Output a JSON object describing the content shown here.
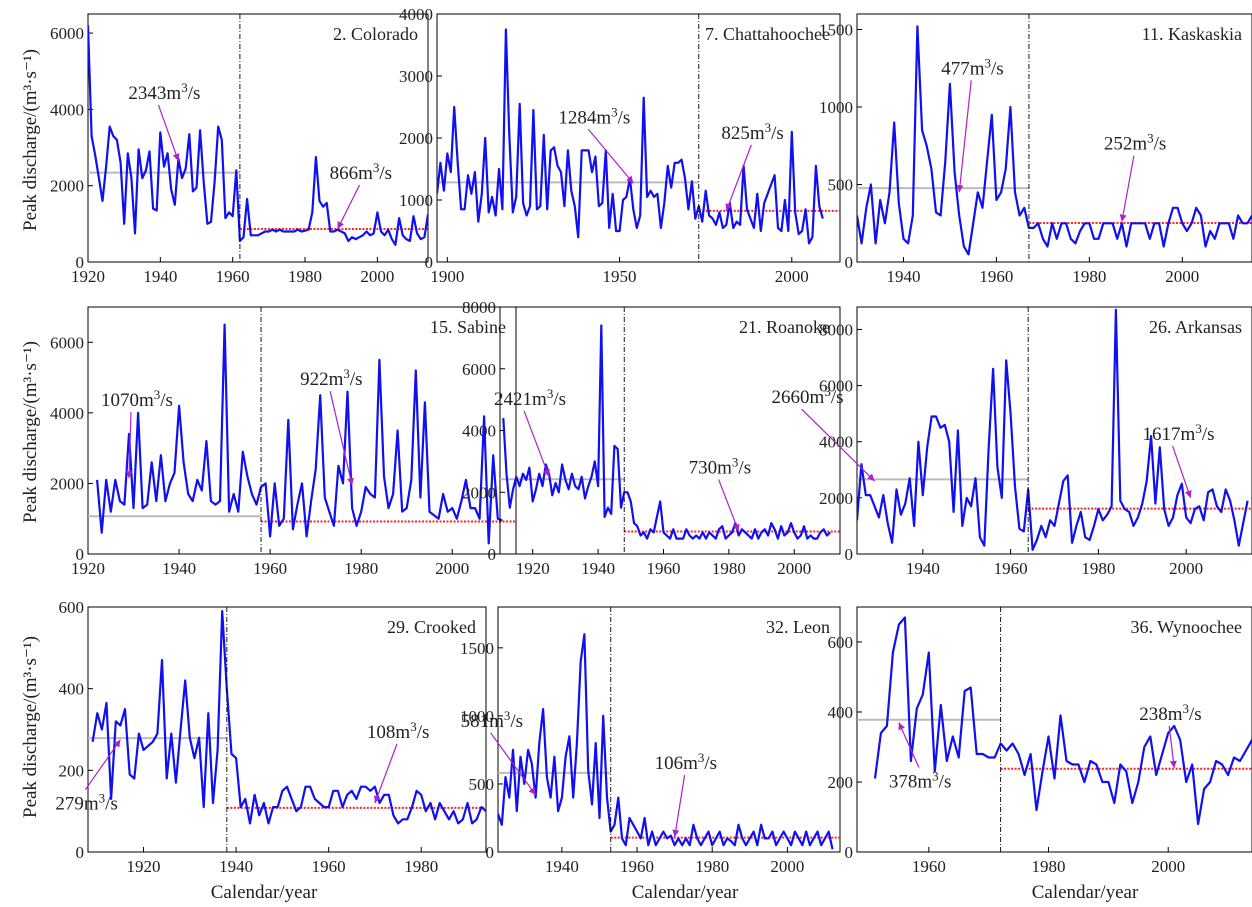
{
  "figure": {
    "ylabel": "Peak discharge/(m³·s⁻¹)",
    "xlabel": "Calendar/year"
  },
  "colors": {
    "series": "#1010f0",
    "mean_after": "#ff2222",
    "mean_before": "#bbbbbb",
    "annotation": "#b020c8",
    "changepoint": "#000000"
  },
  "chart_data": [
    {
      "type": "line",
      "title": "2. Colorado",
      "xlim": [
        1920,
        2014
      ],
      "ylim": [
        0,
        6500
      ],
      "xticks": [
        1920,
        1940,
        1960,
        1980,
        2000
      ],
      "yticks": [
        0,
        2000,
        4000,
        6000
      ],
      "changepoint": 1962,
      "mean_before": 2343,
      "mean_after": 866,
      "annotations": [
        {
          "text": "2343m³/s",
          "x": 1945,
          "y": 2650
        },
        {
          "text": "866m³/s",
          "x": 1989,
          "y": 866
        }
      ],
      "x_start": 1920,
      "values": [
        6200,
        3300,
        2800,
        2200,
        1600,
        2500,
        3550,
        3300,
        3200,
        2600,
        1000,
        2850,
        2200,
        750,
        2950,
        2200,
        2400,
        2900,
        1400,
        1350,
        3400,
        2500,
        2850,
        1900,
        1500,
        2700,
        2200,
        2450,
        3350,
        1850,
        1950,
        3450,
        2100,
        1000,
        1050,
        2100,
        3550,
        3200,
        1150,
        1300,
        1200,
        2400,
        550,
        650,
        1650,
        700,
        700,
        700,
        750,
        800,
        800,
        850,
        800,
        850,
        800,
        800,
        800,
        800,
        850,
        800,
        820,
        850,
        1300,
        2750,
        1600,
        1450,
        1550,
        800,
        800,
        850,
        800,
        750,
        550,
        650,
        600,
        650,
        700,
        800,
        700,
        750,
        1300,
        800,
        700,
        850,
        600,
        450,
        1150,
        700,
        600,
        550,
        1200,
        750,
        600,
        650,
        1250
      ]
    },
    {
      "type": "line",
      "title": "7. Chattahoochee",
      "xlim": [
        1897,
        2014
      ],
      "ylim": [
        0,
        4000
      ],
      "xticks": [
        1900,
        1950,
        2000
      ],
      "yticks": [
        0,
        1000,
        2000,
        3000,
        4000
      ],
      "changepoint": 1973,
      "mean_before": 1284,
      "mean_after": 825,
      "annotations": [
        {
          "text": "1284m³/s",
          "x": 1954,
          "y": 1270
        },
        {
          "text": "825m³/s",
          "x": 1981,
          "y": 825
        }
      ],
      "x_start": 1897,
      "values": [
        1100,
        1600,
        1150,
        1750,
        1450,
        2500,
        1600,
        850,
        850,
        1400,
        1100,
        1450,
        650,
        1100,
        2000,
        800,
        1050,
        750,
        1500,
        850,
        3750,
        2050,
        800,
        1050,
        2550,
        950,
        750,
        900,
        2450,
        850,
        900,
        2050,
        850,
        1800,
        1850,
        1550,
        1450,
        900,
        1800,
        1150,
        900,
        400,
        1800,
        1800,
        1800,
        1450,
        1700,
        900,
        950,
        1800,
        550,
        1100,
        500,
        500,
        1000,
        1050,
        1350,
        850,
        550,
        750,
        2650,
        1050,
        1150,
        1050,
        1100,
        550,
        950,
        1550,
        1200,
        1600,
        1600,
        1650,
        1350,
        850,
        1300,
        700,
        900,
        650,
        1150,
        750,
        700,
        600,
        800,
        550,
        600,
        950,
        550,
        650,
        600,
        1550,
        850,
        700,
        550,
        1100,
        500,
        950,
        1100,
        1250,
        1400,
        550,
        500,
        1000,
        500,
        2100,
        800,
        450,
        500,
        850,
        300,
        400,
        1550,
        900,
        700
      ]
    },
    {
      "type": "line",
      "title": "11. Kaskaskia",
      "xlim": [
        1930,
        2015
      ],
      "ylim": [
        0,
        1600
      ],
      "xticks": [
        1940,
        1960,
        1980,
        2000
      ],
      "yticks": [
        0,
        500,
        1000,
        1500
      ],
      "changepoint": 1967,
      "mean_before": 477,
      "mean_after": 252,
      "annotations": [
        {
          "text": "477m³/s",
          "x": 1952,
          "y": 450
        },
        {
          "text": "252m³/s",
          "x": 1987,
          "y": 260
        }
      ],
      "x_start": 1930,
      "values": [
        300,
        120,
        350,
        500,
        120,
        400,
        250,
        450,
        900,
        380,
        150,
        120,
        300,
        1520,
        850,
        750,
        600,
        320,
        300,
        650,
        1150,
        580,
        300,
        100,
        50,
        250,
        450,
        350,
        650,
        950,
        400,
        450,
        600,
        1000,
        450,
        300,
        350,
        220,
        220,
        250,
        150,
        100,
        250,
        150,
        250,
        250,
        150,
        120,
        200,
        250,
        250,
        150,
        150,
        250,
        250,
        250,
        150,
        250,
        100,
        250,
        250,
        250,
        250,
        150,
        250,
        250,
        100,
        250,
        350,
        350,
        250,
        200,
        250,
        350,
        300,
        100,
        200,
        150,
        250,
        250,
        250,
        150,
        300,
        250,
        250,
        300,
        250,
        250
      ]
    },
    {
      "type": "line",
      "title": "15. Sabine",
      "xlim": [
        1920,
        2014
      ],
      "ylim": [
        0,
        7000
      ],
      "xticks": [
        1920,
        1940,
        1960,
        1980,
        2000
      ],
      "yticks": [
        0,
        2000,
        4000,
        6000
      ],
      "changepoint": 1958,
      "mean_before": 1070,
      "mean_after": 922,
      "annotations": [
        {
          "text": "1070m³/s",
          "x": 1929,
          "y": 2150
        },
        {
          "text": "922m³/s",
          "x": 1978,
          "y": 1950
        }
      ],
      "x_start": 1922,
      "values": [
        2100,
        600,
        2100,
        1200,
        2100,
        1500,
        1400,
        3400,
        1300,
        4000,
        1300,
        1400,
        2600,
        1500,
        2800,
        1500,
        2000,
        2300,
        4200,
        2600,
        1700,
        1500,
        2100,
        1800,
        3200,
        1500,
        1400,
        1500,
        6500,
        1200,
        1700,
        1200,
        2900,
        2200,
        1700,
        1400,
        1900,
        2000,
        500,
        2000,
        800,
        1000,
        3800,
        700,
        1400,
        2000,
        500,
        1500,
        2400,
        4500,
        1600,
        1200,
        800,
        2500,
        2000,
        4600,
        1300,
        800,
        1200,
        1900,
        1700,
        1600,
        5500,
        2200,
        1300,
        1700,
        3500,
        1200,
        1300,
        2100,
        5200,
        1600,
        4300,
        1200,
        1100,
        1000,
        1700,
        1200,
        1300,
        1000,
        1500,
        2100,
        1300,
        1300,
        1000,
        3900,
        300,
        2800,
        1000,
        950
      ]
    },
    {
      "type": "line",
      "title": "21. Roanoke",
      "xlim": [
        1910,
        2014
      ],
      "ylim": [
        0,
        8000
      ],
      "xticks": [
        1920,
        1940,
        1960,
        1980,
        2000
      ],
      "yticks": [
        0,
        2000,
        4000,
        6000,
        8000
      ],
      "changepoint": 1948,
      "mean_before": 2421,
      "mean_after": 730,
      "annotations": [
        {
          "text": "2421m³/s",
          "x": 1925,
          "y": 2500
        },
        {
          "text": "730m³/s",
          "x": 1983,
          "y": 730
        }
      ],
      "x_start": 1911,
      "values": [
        4400,
        2600,
        1500,
        2100,
        2500,
        2200,
        2600,
        2400,
        2800,
        1700,
        2100,
        2600,
        2200,
        2900,
        2600,
        1900,
        2300,
        2000,
        2900,
        2400,
        2100,
        2600,
        2200,
        2100,
        2500,
        1800,
        2200,
        2500,
        3000,
        2200,
        7400,
        1200,
        1500,
        1300,
        3500,
        3400,
        1500,
        2000,
        2000,
        1700,
        1000,
        900,
        600,
        700,
        500,
        800,
        700,
        1200,
        1700,
        700,
        600,
        500,
        800,
        500,
        500,
        500,
        800,
        600,
        500,
        600,
        500,
        700,
        500,
        700,
        600,
        500,
        800,
        900,
        500,
        600,
        700,
        1000,
        600,
        800,
        700,
        600,
        500,
        800,
        500,
        700,
        800,
        600,
        1000,
        800,
        500,
        900,
        600,
        700,
        1000,
        700,
        500,
        600,
        900,
        500,
        600,
        500,
        500,
        700,
        800,
        600,
        700
      ]
    },
    {
      "type": "line",
      "title": "26. Arkansas",
      "xlim": [
        1925,
        2015
      ],
      "ylim": [
        0,
        8800
      ],
      "xticks": [
        1940,
        1960,
        1980,
        2000
      ],
      "yticks": [
        0,
        2000,
        4000,
        6000,
        8000
      ],
      "changepoint": 1964,
      "mean_before": 2660,
      "mean_after": 1617,
      "annotations": [
        {
          "text": "2660m³/s",
          "x": 1929,
          "y": 2600
        },
        {
          "text": "1617m³/s",
          "x": 2001,
          "y": 2000
        }
      ],
      "x_start": 1925,
      "values": [
        1200,
        3200,
        2100,
        2100,
        1700,
        1300,
        2100,
        1100,
        400,
        2300,
        1400,
        1800,
        2700,
        1000,
        4000,
        2100,
        3800,
        4900,
        4900,
        4500,
        4600,
        4000,
        1500,
        4400,
        1000,
        2000,
        1700,
        2700,
        600,
        300,
        3800,
        6600,
        3100,
        2000,
        6900,
        5000,
        2400,
        900,
        800,
        2300,
        150,
        500,
        1000,
        600,
        1200,
        1000,
        1800,
        2600,
        2800,
        400,
        1000,
        1500,
        600,
        500,
        1000,
        1600,
        1200,
        1400,
        1700,
        8700,
        1900,
        1600,
        1500,
        1000,
        1300,
        1800,
        2600,
        4200,
        1800,
        3800,
        1600,
        1000,
        1300,
        2100,
        2500,
        1300,
        1100,
        1600,
        1700,
        1200,
        2200,
        2300,
        1700,
        1500,
        2300,
        1900,
        1200,
        300,
        1100,
        1900
      ]
    },
    {
      "type": "line",
      "title": "29. Crooked",
      "xlim": [
        1908,
        1994
      ],
      "ylim": [
        0,
        600
      ],
      "xticks": [
        1920,
        1940,
        1960,
        1980
      ],
      "yticks": [
        0,
        200,
        400,
        600
      ],
      "changepoint": 1938,
      "mean_before": 279,
      "mean_after": 108,
      "annotations": [
        {
          "text": "279m³/s",
          "x": 1915,
          "y": 275
        },
        {
          "text": "108m³/s",
          "x": 1970,
          "y": 120
        }
      ],
      "x_start": 1909,
      "values": [
        270,
        340,
        300,
        365,
        130,
        320,
        310,
        350,
        190,
        180,
        290,
        250,
        260,
        270,
        290,
        470,
        180,
        290,
        170,
        300,
        420,
        280,
        230,
        280,
        110,
        340,
        120,
        250,
        590,
        400,
        240,
        230,
        110,
        130,
        70,
        140,
        90,
        120,
        70,
        110,
        110,
        150,
        160,
        130,
        100,
        110,
        160,
        160,
        130,
        120,
        110,
        110,
        150,
        150,
        110,
        140,
        150,
        130,
        160,
        160,
        150,
        160,
        120,
        140,
        140,
        90,
        70,
        80,
        80,
        110,
        150,
        140,
        100,
        120,
        80,
        120,
        100,
        80,
        100,
        70,
        80,
        120,
        70,
        80,
        110,
        100,
        90,
        70,
        80,
        90
      ]
    },
    {
      "type": "line",
      "title": "32. Leon",
      "xlim": [
        1923,
        2014
      ],
      "ylim": [
        0,
        1800
      ],
      "xticks": [
        1940,
        1960,
        1980,
        2000
      ],
      "yticks": [
        0,
        500,
        1000,
        1500
      ],
      "changepoint": 1953,
      "mean_before": 581,
      "mean_after": 106,
      "annotations": [
        {
          "text": "581m³/s",
          "x": 1933,
          "y": 420
        },
        {
          "text": "106m³/s",
          "x": 1970,
          "y": 110
        }
      ],
      "x_start": 1923,
      "values": [
        280,
        200,
        550,
        400,
        750,
        300,
        700,
        500,
        750,
        650,
        400,
        800,
        1050,
        550,
        400,
        700,
        300,
        400,
        700,
        850,
        400,
        800,
        1400,
        1600,
        600,
        350,
        800,
        250,
        1000,
        400,
        150,
        200,
        400,
        100,
        50,
        250,
        200,
        150,
        100,
        250,
        50,
        150,
        50,
        100,
        150,
        100,
        120,
        50,
        100,
        50,
        100,
        50,
        200,
        100,
        50,
        100,
        150,
        50,
        100,
        150,
        50,
        100,
        80,
        50,
        200,
        100,
        50,
        100,
        150,
        50,
        200,
        100,
        100,
        150,
        50,
        100,
        150,
        100,
        50,
        150,
        100,
        50,
        150,
        50,
        100,
        150,
        50,
        100,
        150,
        20
      ]
    },
    {
      "type": "line",
      "title": "36. Wynoochee",
      "xlim": [
        1948,
        2014
      ],
      "ylim": [
        0,
        700
      ],
      "xticks": [
        1960,
        1980,
        2000
      ],
      "yticks": [
        0,
        200,
        400,
        600
      ],
      "changepoint": 1972,
      "mean_before": 378,
      "mean_after": 238,
      "annotations": [
        {
          "text": "378m³/s",
          "x": 1955,
          "y": 370
        },
        {
          "text": "238m³/s",
          "x": 2001,
          "y": 240
        }
      ],
      "x_start": 1951,
      "values": [
        210,
        340,
        360,
        570,
        650,
        670,
        260,
        410,
        450,
        570,
        230,
        420,
        260,
        330,
        270,
        460,
        470,
        280,
        280,
        270,
        270,
        310,
        290,
        310,
        280,
        220,
        280,
        120,
        230,
        330,
        210,
        390,
        260,
        250,
        250,
        200,
        260,
        250,
        200,
        200,
        140,
        250,
        230,
        140,
        200,
        300,
        330,
        220,
        280,
        340,
        360,
        320,
        200,
        250,
        80,
        180,
        200,
        260,
        250,
        220,
        270,
        260,
        290,
        320,
        270,
        120,
        200
      ]
    }
  ]
}
